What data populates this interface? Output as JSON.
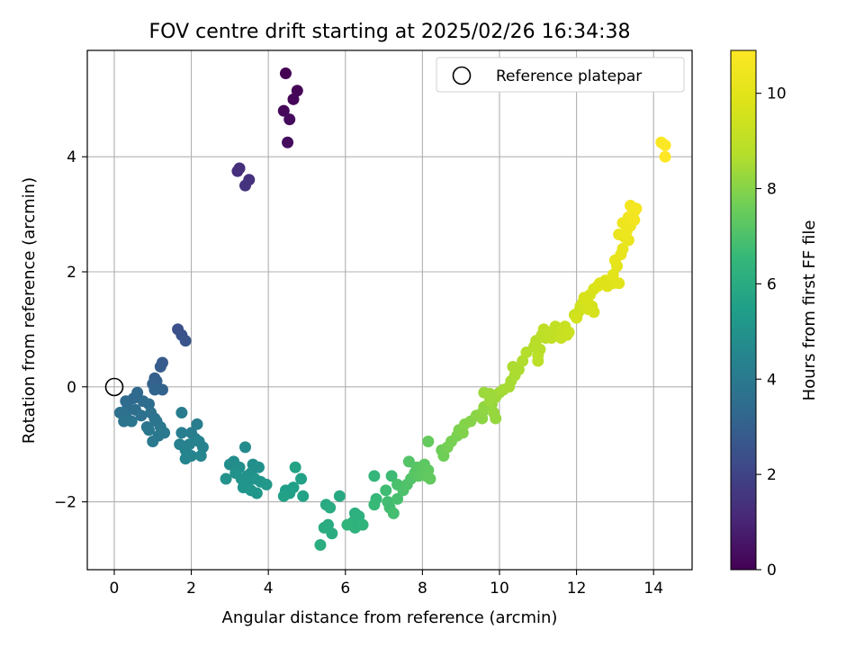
{
  "chart_data": {
    "type": "scatter",
    "title": "FOV centre drift starting at 2025/02/26 16:34:38",
    "xlabel": "Angular distance from reference (arcmin)",
    "ylabel": "Rotation from reference (arcmin)",
    "xlim": [
      -0.7,
      15.0
    ],
    "ylim": [
      -3.18,
      5.85
    ],
    "xticks": [
      0,
      2,
      4,
      6,
      8,
      10,
      12,
      14
    ],
    "yticks": [
      -2,
      0,
      2,
      4
    ],
    "grid": true,
    "legend": {
      "location": "top-right",
      "entries": [
        "Reference platepar"
      ]
    },
    "reference_point": {
      "x": 0,
      "y": 0
    },
    "colorbar": {
      "label": "Hours from first FF file",
      "min": 0,
      "max": 10.9,
      "ticks": [
        0,
        2,
        4,
        6,
        8,
        10
      ],
      "colormap": "viridis"
    },
    "points": [
      [
        4.45,
        5.45,
        0.0
      ],
      [
        4.75,
        5.15,
        0.1
      ],
      [
        4.65,
        5.0,
        0.15
      ],
      [
        4.4,
        4.8,
        0.2
      ],
      [
        4.55,
        4.65,
        0.25
      ],
      [
        4.5,
        4.25,
        0.3
      ],
      [
        3.2,
        3.75,
        1.3
      ],
      [
        3.25,
        3.8,
        1.35
      ],
      [
        3.5,
        3.6,
        1.4
      ],
      [
        3.4,
        3.5,
        1.45
      ],
      [
        1.65,
        1.0,
        2.4
      ],
      [
        1.75,
        0.9,
        2.5
      ],
      [
        1.85,
        0.8,
        2.6
      ],
      [
        1.25,
        0.42,
        2.8
      ],
      [
        1.2,
        0.35,
        2.85
      ],
      [
        1.05,
        0.15,
        2.95
      ],
      [
        1.1,
        0.1,
        3.0
      ],
      [
        1.0,
        0.05,
        3.05
      ],
      [
        1.25,
        -0.05,
        3.1
      ],
      [
        1.05,
        -0.05,
        3.15
      ],
      [
        0.6,
        -0.1,
        3.3
      ],
      [
        0.5,
        -0.2,
        3.35
      ],
      [
        0.3,
        -0.25,
        3.4
      ],
      [
        0.75,
        -0.25,
        3.45
      ],
      [
        0.9,
        -0.3,
        3.5
      ],
      [
        0.35,
        -0.35,
        3.5
      ],
      [
        0.55,
        -0.4,
        3.55
      ],
      [
        0.15,
        -0.45,
        3.6
      ],
      [
        0.3,
        -0.5,
        3.65
      ],
      [
        0.7,
        -0.5,
        3.65
      ],
      [
        0.95,
        -0.45,
        3.7
      ],
      [
        1.05,
        -0.55,
        3.7
      ],
      [
        0.25,
        -0.6,
        3.75
      ],
      [
        0.45,
        -0.6,
        3.8
      ],
      [
        0.85,
        -0.7,
        3.8
      ],
      [
        1.1,
        -0.6,
        3.85
      ],
      [
        1.2,
        -0.7,
        3.9
      ],
      [
        0.9,
        -0.75,
        3.9
      ],
      [
        1.15,
        -0.85,
        3.95
      ],
      [
        1.0,
        -0.95,
        4.0
      ],
      [
        1.3,
        -0.8,
        4.0
      ],
      [
        1.75,
        -0.45,
        4.1
      ],
      [
        2.15,
        -0.65,
        4.15
      ],
      [
        1.75,
        -0.8,
        4.2
      ],
      [
        2.0,
        -0.8,
        4.2
      ],
      [
        2.1,
        -0.9,
        4.25
      ],
      [
        1.7,
        -1.0,
        4.3
      ],
      [
        1.95,
        -1.0,
        4.3
      ],
      [
        2.2,
        -0.95,
        4.35
      ],
      [
        1.85,
        -1.1,
        4.4
      ],
      [
        2.3,
        -1.05,
        4.4
      ],
      [
        2.0,
        -1.2,
        4.45
      ],
      [
        1.85,
        -1.25,
        4.45
      ],
      [
        2.25,
        -1.2,
        4.5
      ],
      [
        3.4,
        -1.05,
        4.7
      ],
      [
        3.1,
        -1.3,
        4.8
      ],
      [
        3.0,
        -1.35,
        4.8
      ],
      [
        3.25,
        -1.4,
        4.85
      ],
      [
        3.6,
        -1.35,
        4.85
      ],
      [
        3.75,
        -1.4,
        4.9
      ],
      [
        3.55,
        -1.5,
        4.9
      ],
      [
        3.15,
        -1.5,
        4.95
      ],
      [
        3.45,
        -1.55,
        4.95
      ],
      [
        2.9,
        -1.6,
        5.0
      ],
      [
        3.3,
        -1.6,
        5.0
      ],
      [
        3.65,
        -1.6,
        5.05
      ],
      [
        3.45,
        -1.7,
        5.05
      ],
      [
        3.8,
        -1.65,
        5.1
      ],
      [
        3.35,
        -1.75,
        5.1
      ],
      [
        3.55,
        -1.8,
        5.15
      ],
      [
        3.7,
        -1.85,
        5.15
      ],
      [
        3.95,
        -1.7,
        5.2
      ],
      [
        4.45,
        -1.8,
        5.5
      ],
      [
        4.65,
        -1.75,
        5.5
      ],
      [
        4.55,
        -1.85,
        5.55
      ],
      [
        4.4,
        -1.9,
        5.6
      ],
      [
        4.85,
        -1.6,
        5.6
      ],
      [
        4.7,
        -1.4,
        5.65
      ],
      [
        4.9,
        -1.9,
        5.65
      ],
      [
        5.85,
        -1.9,
        5.9
      ],
      [
        5.5,
        -2.05,
        5.95
      ],
      [
        5.6,
        -2.1,
        6.0
      ],
      [
        5.55,
        -2.4,
        6.0
      ],
      [
        5.45,
        -2.45,
        6.05
      ],
      [
        5.65,
        -2.55,
        6.05
      ],
      [
        5.35,
        -2.75,
        6.1
      ],
      [
        6.25,
        -2.2,
        6.2
      ],
      [
        6.35,
        -2.25,
        6.2
      ],
      [
        6.2,
        -2.35,
        6.25
      ],
      [
        6.35,
        -2.4,
        6.3
      ],
      [
        6.25,
        -2.45,
        6.3
      ],
      [
        6.05,
        -2.4,
        6.35
      ],
      [
        6.45,
        -2.4,
        6.35
      ],
      [
        6.75,
        -1.55,
        6.5
      ],
      [
        6.8,
        -1.95,
        6.55
      ],
      [
        6.75,
        -2.05,
        6.6
      ],
      [
        7.2,
        -1.55,
        6.7
      ],
      [
        7.05,
        -1.8,
        6.75
      ],
      [
        7.1,
        -2.0,
        6.8
      ],
      [
        7.15,
        -2.1,
        6.8
      ],
      [
        7.25,
        -2.2,
        6.85
      ],
      [
        7.35,
        -1.95,
        6.9
      ],
      [
        7.35,
        -1.7,
        6.95
      ],
      [
        7.5,
        -1.8,
        7.0
      ],
      [
        7.6,
        -1.7,
        7.05
      ],
      [
        7.7,
        -1.6,
        7.1
      ],
      [
        7.65,
        -1.3,
        7.15
      ],
      [
        7.8,
        -1.5,
        7.2
      ],
      [
        7.85,
        -1.4,
        7.2
      ],
      [
        7.9,
        -1.55,
        7.25
      ],
      [
        8.0,
        -1.45,
        7.3
      ],
      [
        8.05,
        -1.35,
        7.3
      ],
      [
        8.1,
        -1.55,
        7.35
      ],
      [
        8.15,
        -1.45,
        7.35
      ],
      [
        8.2,
        -1.6,
        7.4
      ],
      [
        8.15,
        -0.95,
        7.45
      ],
      [
        8.5,
        -1.1,
        7.6
      ],
      [
        8.55,
        -1.2,
        7.65
      ],
      [
        8.65,
        -1.05,
        7.7
      ],
      [
        8.75,
        -0.95,
        7.75
      ],
      [
        8.9,
        -0.85,
        7.8
      ],
      [
        8.95,
        -0.75,
        7.85
      ],
      [
        9.05,
        -0.8,
        7.9
      ],
      [
        9.1,
        -0.65,
        7.95
      ],
      [
        9.25,
        -0.6,
        8.0
      ],
      [
        9.4,
        -0.5,
        8.05
      ],
      [
        9.55,
        -0.45,
        8.1
      ],
      [
        9.55,
        -0.55,
        8.1
      ],
      [
        9.6,
        -0.35,
        8.15
      ],
      [
        9.8,
        -0.3,
        8.2
      ],
      [
        9.85,
        -0.45,
        8.25
      ],
      [
        9.9,
        -0.55,
        8.25
      ],
      [
        9.75,
        -0.25,
        8.3
      ],
      [
        9.6,
        -0.1,
        8.3
      ],
      [
        9.75,
        -0.12,
        8.35
      ],
      [
        9.9,
        -0.18,
        8.35
      ],
      [
        10.0,
        -0.1,
        8.4
      ],
      [
        10.1,
        -0.05,
        8.45
      ],
      [
        10.25,
        0.0,
        8.5
      ],
      [
        10.3,
        0.1,
        8.5
      ],
      [
        10.4,
        0.2,
        8.55
      ],
      [
        10.5,
        0.3,
        8.6
      ],
      [
        10.35,
        0.35,
        8.6
      ],
      [
        10.6,
        0.45,
        8.65
      ],
      [
        10.7,
        0.6,
        8.7
      ],
      [
        10.9,
        0.7,
        8.75
      ],
      [
        10.95,
        0.8,
        8.8
      ],
      [
        11.05,
        0.65,
        8.8
      ],
      [
        11.1,
        0.9,
        8.85
      ],
      [
        11.0,
        0.55,
        8.85
      ],
      [
        11.0,
        0.45,
        8.9
      ],
      [
        11.2,
        0.85,
        8.9
      ],
      [
        11.2,
        0.95,
        8.95
      ],
      [
        11.15,
        1.0,
        9.0
      ],
      [
        11.35,
        0.95,
        9.0
      ],
      [
        11.45,
        1.05,
        9.05
      ],
      [
        11.35,
        0.85,
        9.05
      ],
      [
        11.55,
        0.9,
        9.1
      ],
      [
        11.55,
        0.9,
        9.1
      ],
      [
        11.6,
        0.9,
        9.15
      ],
      [
        11.6,
        0.85,
        9.2
      ],
      [
        11.65,
        1.0,
        9.2
      ],
      [
        11.75,
        0.9,
        9.25
      ],
      [
        11.7,
        1.05,
        9.25
      ],
      [
        11.8,
        0.95,
        9.3
      ],
      [
        11.95,
        1.25,
        9.35
      ],
      [
        12.05,
        1.3,
        9.4
      ],
      [
        12.1,
        1.4,
        9.45
      ],
      [
        12.15,
        1.45,
        9.45
      ],
      [
        12.25,
        1.5,
        9.5
      ],
      [
        12.0,
        1.2,
        9.5
      ],
      [
        12.3,
        1.35,
        9.55
      ],
      [
        12.4,
        1.4,
        9.55
      ],
      [
        12.45,
        1.3,
        9.6
      ],
      [
        12.3,
        1.45,
        9.6
      ],
      [
        12.2,
        1.55,
        9.65
      ],
      [
        12.35,
        1.6,
        9.65
      ],
      [
        12.45,
        1.7,
        9.7
      ],
      [
        12.55,
        1.75,
        9.75
      ],
      [
        12.6,
        1.8,
        9.8
      ],
      [
        12.75,
        1.85,
        9.85
      ],
      [
        12.8,
        1.75,
        9.9
      ],
      [
        12.95,
        1.8,
        9.9
      ],
      [
        13.1,
        1.8,
        9.95
      ],
      [
        12.95,
        1.95,
        10.0
      ],
      [
        13.05,
        2.1,
        10.05
      ],
      [
        13.0,
        2.2,
        10.1
      ],
      [
        13.15,
        2.3,
        10.15
      ],
      [
        13.2,
        2.4,
        10.2
      ],
      [
        13.25,
        2.6,
        10.25
      ],
      [
        13.1,
        2.65,
        10.25
      ],
      [
        13.35,
        2.55,
        10.3
      ],
      [
        13.3,
        2.7,
        10.35
      ],
      [
        13.4,
        2.8,
        10.4
      ],
      [
        13.2,
        2.85,
        10.4
      ],
      [
        13.35,
        2.95,
        10.45
      ],
      [
        13.45,
        3.0,
        10.5
      ],
      [
        13.5,
        3.05,
        10.5
      ],
      [
        13.4,
        3.15,
        10.55
      ],
      [
        13.55,
        3.1,
        10.6
      ],
      [
        13.5,
        2.9,
        10.55
      ],
      [
        14.2,
        4.25,
        10.8
      ],
      [
        14.3,
        4.2,
        10.85
      ],
      [
        14.3,
        4.0,
        10.9
      ]
    ]
  }
}
